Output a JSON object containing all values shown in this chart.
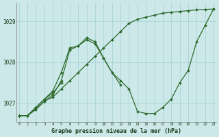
{
  "title": "Graphe pression niveau de la mer (hPa)",
  "background_color": "#cce8e8",
  "grid_color": "#aad4d4",
  "line_color": "#2d6a2d",
  "xlim": [
    -0.3,
    23.3
  ],
  "ylim": [
    1026.55,
    1029.45
  ],
  "yticks": [
    1027,
    1028,
    1029
  ],
  "xticks": [
    0,
    1,
    2,
    3,
    4,
    5,
    6,
    7,
    8,
    9,
    10,
    11,
    12,
    13,
    14,
    15,
    16,
    17,
    18,
    19,
    20,
    21,
    22,
    23
  ],
  "series": [
    {
      "x": [
        0,
        1,
        2,
        3,
        4,
        5,
        6,
        7,
        8,
        9,
        10,
        11,
        12,
        13,
        14,
        15,
        16,
        17,
        18,
        19,
        20,
        21,
        22,
        23
      ],
      "y": [
        1026.7,
        1026.7,
        1026.85,
        1027.05,
        1027.15,
        1027.35,
        1027.55,
        1027.75,
        1027.95,
        1028.15,
        1028.35,
        1028.55,
        1028.75,
        1028.95,
        1029.05,
        1029.1,
        1029.15,
        1029.2,
        1029.22,
        1029.24,
        1029.26,
        1029.28,
        1029.29,
        1029.3
      ]
    },
    {
      "x": [
        0,
        1,
        2,
        3,
        4,
        5,
        6,
        7,
        8,
        9,
        10,
        11,
        12,
        13,
        14,
        15,
        16,
        17,
        18,
        19,
        20,
        21,
        22,
        23
      ],
      "y": [
        1026.7,
        1026.7,
        1026.85,
        1027.05,
        1027.2,
        1027.55,
        1028.3,
        1028.4,
        1028.6,
        1028.5,
        1028.1,
        1027.75,
        1027.55,
        1027.35,
        1026.8,
        1026.75,
        1026.75,
        1026.9,
        1027.1,
        1027.5,
        1027.8,
        1028.5,
        1028.9,
        1029.3
      ]
    },
    {
      "x": [
        0,
        1,
        2,
        3,
        4,
        5,
        6,
        7,
        8,
        9,
        10,
        11,
        12
      ],
      "y": [
        1026.7,
        1026.7,
        1026.9,
        1027.1,
        1027.3,
        1027.75,
        1028.35,
        1028.4,
        1028.55,
        1028.45,
        1028.1,
        1027.75,
        1027.45
      ]
    },
    {
      "x": [
        0,
        1,
        2,
        3,
        4,
        5
      ],
      "y": [
        1026.7,
        1026.7,
        1026.9,
        1027.1,
        1027.25,
        1027.5
      ]
    }
  ]
}
